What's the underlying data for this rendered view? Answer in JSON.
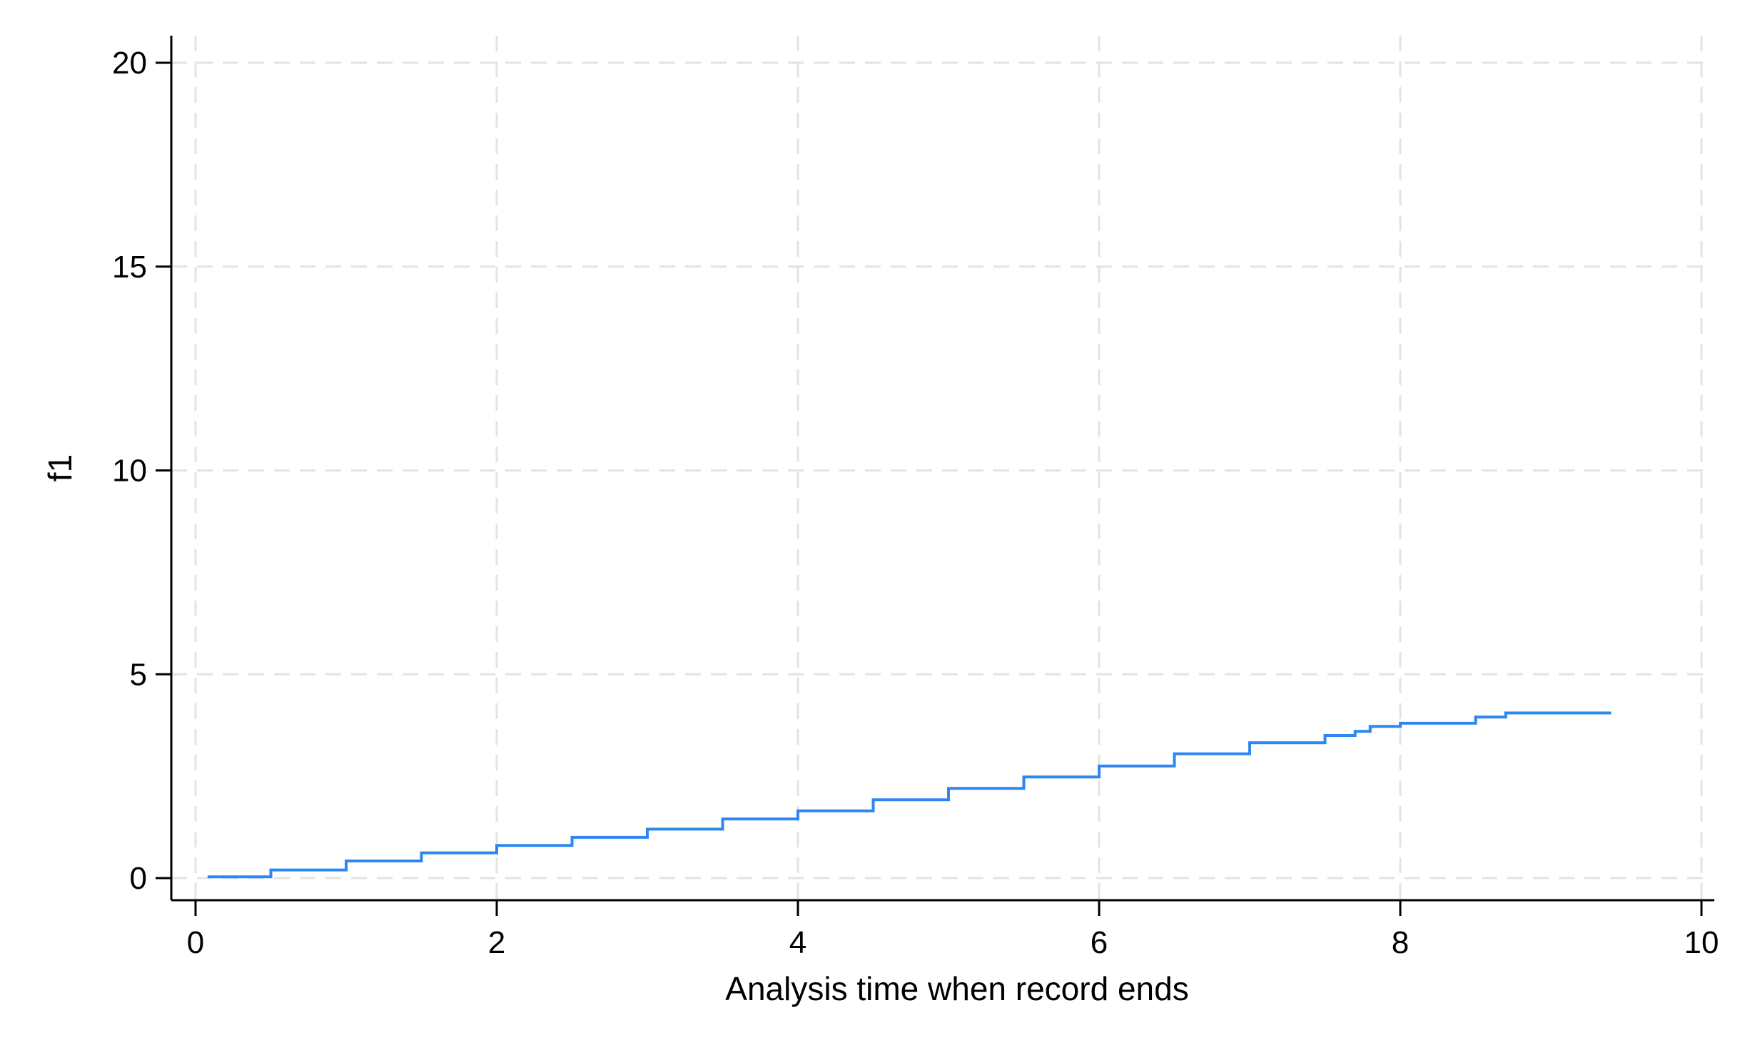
{
  "chart_data": {
    "type": "line",
    "title": "",
    "xlabel": "Analysis time when record ends",
    "ylabel": "f1",
    "xlim": [
      0,
      10
    ],
    "ylim": [
      0,
      20
    ],
    "x_ticks": [
      0,
      2,
      4,
      6,
      8,
      10
    ],
    "y_ticks": [
      0,
      5,
      10,
      15,
      20
    ],
    "x_tick_labels": [
      "0",
      "2",
      "4",
      "6",
      "8",
      "10"
    ],
    "y_tick_labels": [
      "0",
      "5",
      "10",
      "15",
      "20"
    ],
    "grid": true,
    "legend": "none",
    "line_style": "step",
    "colors": {
      "series": "#2E86F0",
      "grid": "#E3E3E3",
      "axis": "#000000"
    },
    "series": [
      {
        "x": [
          0.08,
          0.5,
          1.0,
          1.5,
          2.0,
          2.5,
          3.0,
          3.5,
          4.0,
          4.5,
          5.0,
          5.5,
          6.0,
          6.5,
          7.0,
          7.5,
          7.7,
          7.8,
          8.0,
          8.5,
          8.7,
          9.4
        ],
        "y": [
          0.03,
          0.2,
          0.42,
          0.62,
          0.8,
          1.0,
          1.2,
          1.45,
          1.65,
          1.92,
          2.2,
          2.48,
          2.75,
          3.05,
          3.32,
          3.5,
          3.6,
          3.72,
          3.8,
          3.95,
          4.05,
          4.05
        ]
      }
    ]
  }
}
